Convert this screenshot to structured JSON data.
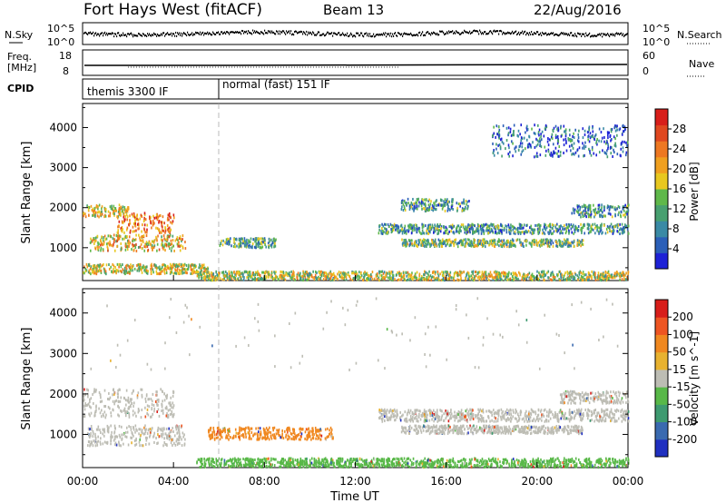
{
  "header": {
    "station": "Fort Hays West (fitACF)",
    "beam": "Beam 13",
    "date": "22/Aug/2016"
  },
  "strips": {
    "nsky": {
      "left_label": "N.Sky",
      "right_label": "N.Search",
      "left_ticks": [
        "10^5",
        "10^0"
      ],
      "right_ticks": [
        "10^5",
        "10^0"
      ]
    },
    "freq": {
      "left_label_1": "Freq.",
      "left_label_2": "[MHz]",
      "right_label": "Nave",
      "left_ticks": [
        "18",
        "8"
      ],
      "right_ticks": [
        "60",
        "0"
      ]
    },
    "cpid": {
      "label": "CPID",
      "modes": [
        {
          "name": "themis 3300 IF",
          "start_hour": 0
        },
        {
          "name": "normal (fast) 151 IF",
          "start_hour": 6
        }
      ]
    }
  },
  "time_axis": {
    "xlabel": "Time UT",
    "ticks": [
      "00:00",
      "04:00",
      "08:00",
      "12:00",
      "16:00",
      "20:00",
      "00:00"
    ],
    "xlim_hours": [
      0,
      24
    ]
  },
  "chart_data": [
    {
      "type": "heatmap",
      "panel": "power",
      "ylabel": "Slant Range [km]",
      "ylim": [
        180,
        4600
      ],
      "yticks": [
        1000,
        2000,
        3000,
        4000
      ],
      "colorbar": {
        "label": "Power [dB]",
        "range": [
          0,
          32
        ],
        "ticks": [
          "28",
          "24",
          "20",
          "16",
          "12",
          "8",
          "4"
        ],
        "colors": [
          "#1e22d6",
          "#2b5fb8",
          "#3a8aa5",
          "#48a070",
          "#5fb84a",
          "#e8c820",
          "#f0a020",
          "#ee7822",
          "#e04820",
          "#d81e1a"
        ]
      },
      "scatter_regions": [
        {
          "t_start": 0.0,
          "t_end": 2.0,
          "range_center": 1950,
          "range_spread": 150,
          "level": 0.55
        },
        {
          "t_start": 1.5,
          "t_end": 4.0,
          "range_center": 1650,
          "range_spread": 250,
          "level": 0.75
        },
        {
          "t_start": 0.3,
          "t_end": 4.5,
          "range_center": 1150,
          "range_spread": 200,
          "level": 0.6
        },
        {
          "t_start": 0.0,
          "t_end": 5.5,
          "range_center": 500,
          "range_spread": 120,
          "level": 0.55
        },
        {
          "t_start": 6.0,
          "t_end": 8.5,
          "range_center": 1150,
          "range_spread": 120,
          "level": 0.35
        },
        {
          "t_start": 5.0,
          "t_end": 24.0,
          "range_center": 330,
          "range_spread": 110,
          "level": 0.5
        },
        {
          "t_start": 13.0,
          "t_end": 24.0,
          "range_center": 1500,
          "range_spread": 120,
          "level": 0.3
        },
        {
          "t_start": 14.0,
          "t_end": 22.0,
          "range_center": 1150,
          "range_spread": 90,
          "level": 0.4
        },
        {
          "t_start": 14.0,
          "t_end": 17.0,
          "range_center": 2100,
          "range_spread": 150,
          "level": 0.3
        },
        {
          "t_start": 21.5,
          "t_end": 24.0,
          "range_center": 1950,
          "range_spread": 150,
          "level": 0.3
        },
        {
          "t_start": 18.0,
          "t_end": 24.0,
          "range_center": 3700,
          "range_spread": 400,
          "level": 0.2
        }
      ]
    },
    {
      "type": "heatmap",
      "panel": "velocity",
      "ylabel": "Slant Range [km]",
      "ylim": [
        180,
        4600
      ],
      "yticks": [
        1000,
        2000,
        3000,
        4000
      ],
      "colorbar": {
        "label": "Velocity [m s^-1]",
        "range": [
          -250,
          250
        ],
        "ticks": [
          "200",
          "100",
          "50",
          "15",
          "-15",
          "-50",
          "-100",
          "-200"
        ],
        "colors": [
          "#2030c0",
          "#3a6ab0",
          "#3e9a70",
          "#58b848",
          "#bdbdb4",
          "#e8b230",
          "#f08820",
          "#ee5522",
          "#d81e1a"
        ]
      },
      "scatter_regions": [
        {
          "t_start": 0.0,
          "t_end": 4.0,
          "range_center": 1800,
          "range_spread": 350,
          "category": "ground",
          "color": "#bdbdb4"
        },
        {
          "t_start": 0.2,
          "t_end": 4.5,
          "range_center": 1000,
          "range_spread": 250,
          "category": "ground",
          "color": "#bdbdb4"
        },
        {
          "t_start": 5.5,
          "t_end": 11.0,
          "range_center": 1050,
          "range_spread": 150,
          "category": "away",
          "color": "#f08820"
        },
        {
          "t_start": 5.0,
          "t_end": 24.0,
          "range_center": 330,
          "range_spread": 110,
          "category": "toward",
          "color": "#58b848"
        },
        {
          "t_start": 13.0,
          "t_end": 24.0,
          "range_center": 1500,
          "range_spread": 150,
          "category": "ground",
          "color": "#bdbdb4"
        },
        {
          "t_start": 14.0,
          "t_end": 22.0,
          "range_center": 1150,
          "range_spread": 100,
          "category": "ground",
          "color": "#bdbdb4"
        },
        {
          "t_start": 21.0,
          "t_end": 24.0,
          "range_center": 1950,
          "range_spread": 150,
          "category": "ground",
          "color": "#bdbdb4"
        },
        {
          "t_start": 0.0,
          "t_end": 24.0,
          "range_center": 3500,
          "range_spread": 900,
          "category": "scattered",
          "color": "#bdbdb4"
        }
      ]
    }
  ]
}
